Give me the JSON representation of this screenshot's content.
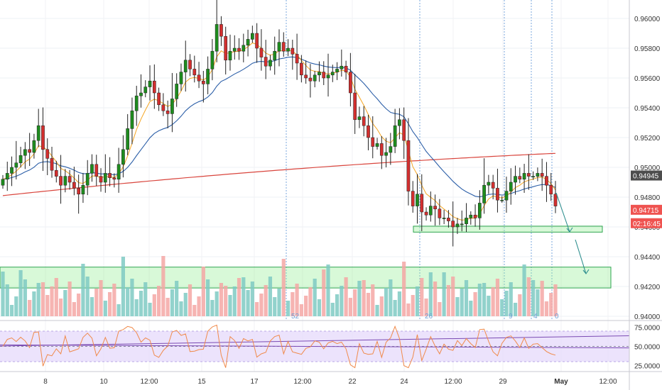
{
  "chart_data": {
    "type": "candlestick",
    "instrument_note": "",
    "y_axis": {
      "ticks": [
        "0.96000",
        "0.95800",
        "0.95600",
        "0.95400",
        "0.95200",
        "0.95000",
        "0.94800",
        "0.94600",
        "0.94400",
        "0.94200",
        "0.94000"
      ],
      "range": [
        0.9395,
        0.9618
      ]
    },
    "x_axis": {
      "ticks": [
        "8",
        "10",
        "12:00",
        "15",
        "17",
        "12:00",
        "22",
        "24",
        "12:00",
        "29",
        "May",
        "12:00"
      ]
    },
    "price_labels": [
      {
        "text": "0.94945",
        "value": 0.94945,
        "color": "#4d4d4d"
      },
      {
        "text": "0.94715",
        "value": 0.94715,
        "color": "#ef5350"
      },
      {
        "text": "02:16:45",
        "value": 0.94625,
        "color": "#ef5350"
      }
    ],
    "closes": [
      0.9492,
      0.9496,
      0.95,
      0.9503,
      0.9508,
      0.9512,
      0.951,
      0.9518,
      0.9528,
      0.9512,
      0.9506,
      0.9498,
      0.9494,
      0.9488,
      0.9494,
      0.949,
      0.9486,
      0.9482,
      0.9488,
      0.9496,
      0.9502,
      0.9494,
      0.949,
      0.9496,
      0.9493,
      0.9492,
      0.9502,
      0.9512,
      0.9526,
      0.9538,
      0.9548,
      0.955,
      0.9554,
      0.9558,
      0.955,
      0.9542,
      0.9538,
      0.9536,
      0.9546,
      0.9556,
      0.9564,
      0.9572,
      0.9566,
      0.9562,
      0.9558,
      0.9556,
      0.9566,
      0.9578,
      0.9596,
      0.9588,
      0.9572,
      0.9578,
      0.958,
      0.9578,
      0.9582,
      0.9586,
      0.959,
      0.958,
      0.9574,
      0.9568,
      0.9572,
      0.9578,
      0.9584,
      0.9578,
      0.958,
      0.9576,
      0.957,
      0.9562,
      0.956,
      0.9558,
      0.9562,
      0.9564,
      0.956,
      0.9562,
      0.9564,
      0.9566,
      0.9568,
      0.9564,
      0.955,
      0.9532,
      0.9534,
      0.9528,
      0.952,
      0.9514,
      0.9516,
      0.9508,
      0.951,
      0.9514,
      0.9528,
      0.9532,
      0.9518,
      0.9484,
      0.9474,
      0.9482,
      0.947,
      0.9468,
      0.9474,
      0.9472,
      0.9466,
      0.9466,
      0.9464,
      0.946,
      0.9462,
      0.9462,
      0.9466,
      0.9468,
      0.9466,
      0.9476,
      0.9488,
      0.949,
      0.9486,
      0.9478,
      0.9478,
      0.9484,
      0.949,
      0.9494,
      0.9492,
      0.9496,
      0.9494,
      0.9494,
      0.9496,
      0.9494,
      0.9488,
      0.9482,
      0.9474
    ],
    "indicators": {
      "ema_fast": {
        "color": "#f5a623"
      },
      "ema_mid": {
        "color": "#2c5fa8"
      },
      "ema_slow": {
        "color": "#d9453d"
      }
    },
    "volume": {
      "color_up": "#7fcac3",
      "color_down": "#f4a7a4"
    },
    "volume_counts": [
      "52",
      "26",
      "9",
      "4",
      "0"
    ],
    "zones": [
      {
        "label": "",
        "range": [
          0.94565,
          0.94605
        ]
      },
      {
        "label": "",
        "range": [
          0.9419,
          0.9433
        ]
      }
    ],
    "rsi": {
      "ticks": [
        "75.0000",
        "50.0000",
        "25.0000"
      ],
      "range": [
        17,
        83
      ],
      "band": [
        30,
        70
      ],
      "line_color": "#f08a4b",
      "band_color": "#e7dcfb"
    },
    "colors": {
      "up": "#1e8c1e",
      "down": "#d32f2f",
      "zone": "#90ee90"
    }
  }
}
